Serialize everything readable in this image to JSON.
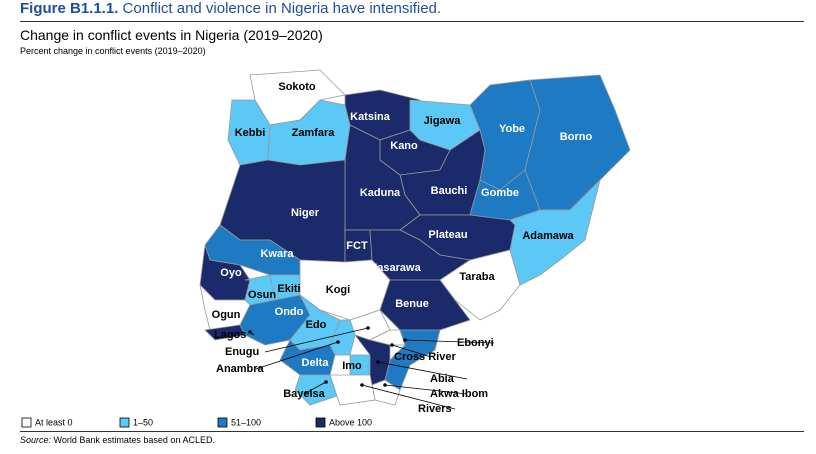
{
  "header": {
    "label": "Figure B1.1.1.",
    "title": "Conflict and violence in Nigeria have intensified."
  },
  "map": {
    "title": "Change in conflict events in Nigeria (2019–2020)",
    "subtitle": "Percent change in conflict events (2019–2020)",
    "legend": [
      {
        "label": "At least 0",
        "color": "#ffffff"
      },
      {
        "label": "1–50",
        "color": "#5bc8f5"
      },
      {
        "label": "51–100",
        "color": "#1f7ac4"
      },
      {
        "label": "Above 100",
        "color": "#1b2a6b"
      }
    ],
    "states": [
      {
        "name": "Sokoto",
        "class": "At least 0"
      },
      {
        "name": "Kebbi",
        "class": "1–50"
      },
      {
        "name": "Zamfara",
        "class": "1–50"
      },
      {
        "name": "Katsina",
        "class": "Above 100"
      },
      {
        "name": "Jigawa",
        "class": "1–50"
      },
      {
        "name": "Kano",
        "class": "Above 100"
      },
      {
        "name": "Yobe",
        "class": "51–100"
      },
      {
        "name": "Borno",
        "class": "51–100"
      },
      {
        "name": "Bauchi",
        "class": "Above 100"
      },
      {
        "name": "Gombe",
        "class": "51–100"
      },
      {
        "name": "Adamawa",
        "class": "1–50"
      },
      {
        "name": "Kaduna",
        "class": "Above 100"
      },
      {
        "name": "Niger",
        "class": "Above 100"
      },
      {
        "name": "Kwara",
        "class": "51–100"
      },
      {
        "name": "FCT",
        "class": "Above 100"
      },
      {
        "name": "Plateau",
        "class": "Above 100"
      },
      {
        "name": "Nasarawa",
        "class": "Above 100"
      },
      {
        "name": "Taraba",
        "class": "At least 0"
      },
      {
        "name": "Oyo",
        "class": "Above 100"
      },
      {
        "name": "Osun",
        "class": "1–50"
      },
      {
        "name": "Ekiti",
        "class": "1–50"
      },
      {
        "name": "Kogi",
        "class": "At least 0"
      },
      {
        "name": "Ogun",
        "class": "At least 0"
      },
      {
        "name": "Ondo",
        "class": "51–100"
      },
      {
        "name": "Lagos",
        "class": "Above 100"
      },
      {
        "name": "Benue",
        "class": "Above 100"
      },
      {
        "name": "Edo",
        "class": "1–50"
      },
      {
        "name": "Enugu",
        "class": "At least 0"
      },
      {
        "name": "Ebonyi",
        "class": "At least 0"
      },
      {
        "name": "Anambra",
        "class": "1–50"
      },
      {
        "name": "Cross River",
        "class": "51–100"
      },
      {
        "name": "Delta",
        "class": "51–100"
      },
      {
        "name": "Imo",
        "class": "1–50"
      },
      {
        "name": "Abia",
        "class": "Above 100"
      },
      {
        "name": "Akwa Ibom",
        "class": "At least 0"
      },
      {
        "name": "Bayelsa",
        "class": "1–50"
      },
      {
        "name": "Rivers",
        "class": "At least 0"
      }
    ]
  },
  "source": {
    "label": "Source:",
    "text": "World Bank estimates based on ACLED."
  }
}
